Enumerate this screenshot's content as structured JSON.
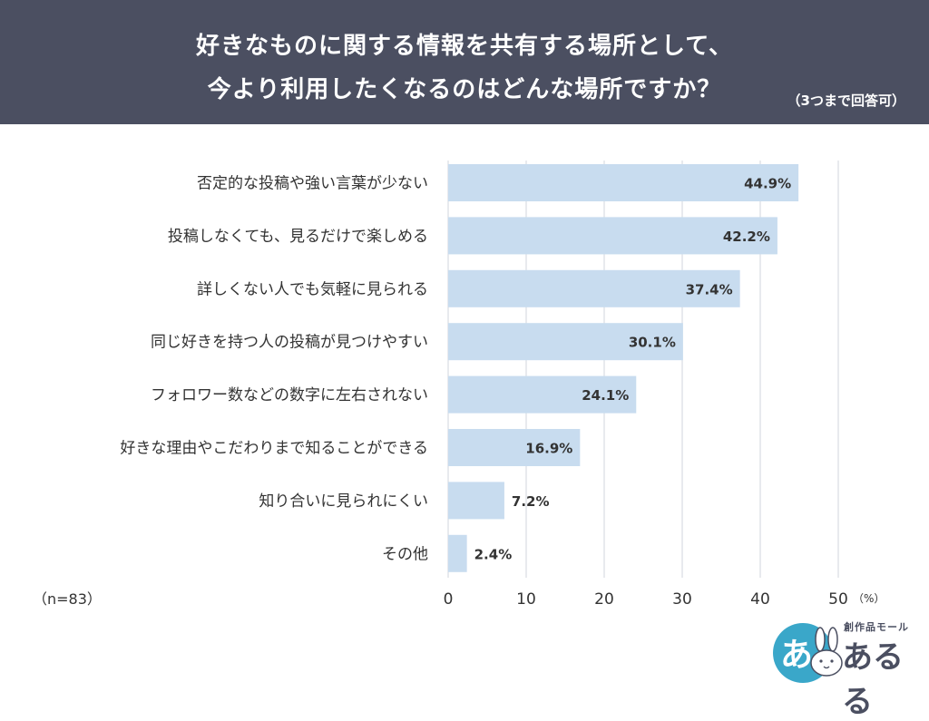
{
  "header": {
    "title_line1": "好きなものに関する情報を共有する場所として、",
    "title_line2": "今より利用したくなるのはどんな場所ですか？",
    "note": "（3つまで回答可）"
  },
  "chart_data": {
    "type": "bar",
    "orientation": "horizontal",
    "categories": [
      "否定的な投稿や強い言葉が少ない",
      "投稿しなくても、見るだけで楽しめる",
      "詳しくない人でも気軽に見られる",
      "同じ好きを持つ人の投稿が見つけやすい",
      "フォロワー数などの数字に左右されない",
      "好きな理由やこだわりまで知ることができる",
      "知り合いに見られにくい",
      "その他"
    ],
    "values": [
      44.9,
      42.2,
      37.4,
      30.1,
      24.1,
      16.9,
      7.2,
      2.4
    ],
    "value_labels": [
      "44.9%",
      "42.2%",
      "37.4%",
      "30.1%",
      "24.1%",
      "16.9%",
      "7.2%",
      "2.4%"
    ],
    "xlim": [
      0,
      50
    ],
    "x_ticks": [
      "0",
      "10",
      "20",
      "30",
      "40",
      "50"
    ],
    "x_unit": "（%）",
    "sample_note": "（n=83）",
    "grid": true,
    "bar_color": "#c8dcef",
    "grid_color": "#d9dde3"
  },
  "logo": {
    "mark": "あ",
    "subtitle": "創作品モール",
    "name": "あるる",
    "color": "#3aa7c9"
  }
}
